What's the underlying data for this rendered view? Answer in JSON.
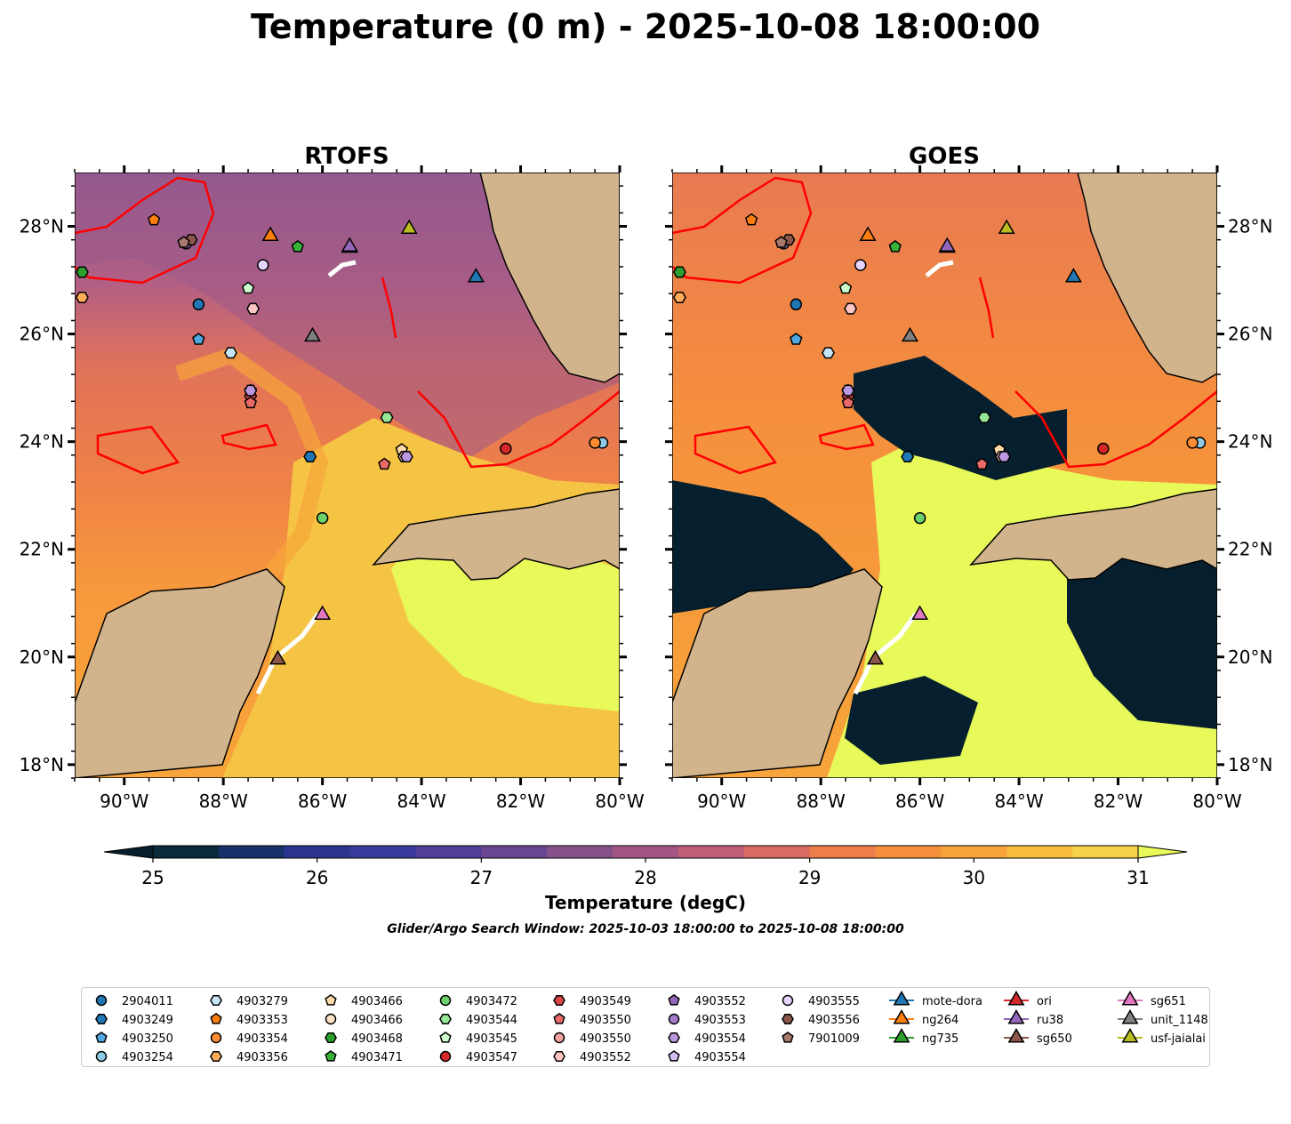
{
  "title": "Temperature (0 m) - 2025-10-08 18:00:00",
  "panels": [
    {
      "name": "RTOFS"
    },
    {
      "name": "GOES"
    }
  ],
  "axes": {
    "lon_range": [
      -91,
      -80
    ],
    "lat_range": [
      17.75,
      29
    ],
    "lon_ticks": [
      -90,
      -88,
      -86,
      -84,
      -82,
      -80
    ],
    "lon_labels": [
      "90°W",
      "88°W",
      "86°W",
      "84°W",
      "82°W",
      "80°W"
    ],
    "lat_ticks": [
      18,
      20,
      22,
      24,
      26,
      28
    ],
    "lat_labels": [
      "18°N",
      "20°N",
      "22°N",
      "24°N",
      "26°N",
      "28°N"
    ]
  },
  "colorbar": {
    "label": "Temperature (degC)",
    "min": 25,
    "max": 31,
    "step": 0.5,
    "ticks": [
      25,
      26,
      27,
      28,
      29,
      30,
      31
    ],
    "tick_labels": [
      "25",
      "26",
      "27",
      "28",
      "29",
      "30",
      "31"
    ],
    "colors": [
      "#0b2a3b",
      "#15326b",
      "#2b3591",
      "#3a3a9c",
      "#533f97",
      "#6b4791",
      "#86518a",
      "#a35685",
      "#c05e77",
      "#d86a62",
      "#ee7d4c",
      "#f58f3c",
      "#f7a53a",
      "#f7bb3e",
      "#f6d14a"
    ],
    "under_color": "#061f2e",
    "over_color": "#e8f95a"
  },
  "subtitle": "Glider/Argo Search Window: 2025-10-03 18:00:00 to 2025-10-08 18:00:00",
  "colors": {
    "land": "#d2b48c",
    "eddy_contour": "#ff0000",
    "glider_track": "#ffffff"
  },
  "legend": {
    "items": [
      {
        "label": "2904011",
        "marker": "circle",
        "color": "#1f77b4"
      },
      {
        "label": "4903249",
        "marker": "hexagon",
        "color": "#1f77b4"
      },
      {
        "label": "4903250",
        "marker": "pentagon",
        "color": "#4ea7e0"
      },
      {
        "label": "4903254",
        "marker": "circle",
        "color": "#8ecae6"
      },
      {
        "label": "4903279",
        "marker": "hexagon",
        "color": "#c6e6f7"
      },
      {
        "label": "4903353",
        "marker": "pentagon",
        "color": "#ff7f0e"
      },
      {
        "label": "4903354",
        "marker": "circle",
        "color": "#ff8c33"
      },
      {
        "label": "4903356",
        "marker": "hexagon",
        "color": "#ffad5a"
      },
      {
        "label": "4903466",
        "marker": "pentagon",
        "color": "#ffd9a8"
      },
      {
        "label": "4903466",
        "marker": "circle",
        "color": "#ffe3c4"
      },
      {
        "label": "4903468",
        "marker": "hexagon",
        "color": "#2ca02c"
      },
      {
        "label": "4903471",
        "marker": "pentagon",
        "color": "#38b338"
      },
      {
        "label": "4903472",
        "marker": "circle",
        "color": "#6cd06c"
      },
      {
        "label": "4903544",
        "marker": "hexagon",
        "color": "#98e698"
      },
      {
        "label": "4903545",
        "marker": "pentagon",
        "color": "#ccffcc"
      },
      {
        "label": "4903547",
        "marker": "circle",
        "color": "#d62728"
      },
      {
        "label": "4903549",
        "marker": "hexagon",
        "color": "#d94545"
      },
      {
        "label": "4903550",
        "marker": "pentagon",
        "color": "#ea6a6a"
      },
      {
        "label": "4903550",
        "marker": "circle",
        "color": "#f2a0a0"
      },
      {
        "label": "4903552",
        "marker": "hexagon",
        "color": "#ffc6c6"
      },
      {
        "label": "4903552",
        "marker": "pentagon",
        "color": "#9467bd"
      },
      {
        "label": "4903553",
        "marker": "circle",
        "color": "#a37ccc"
      },
      {
        "label": "4903554",
        "marker": "hexagon",
        "color": "#bb97e0"
      },
      {
        "label": "4903554",
        "marker": "pentagon",
        "color": "#d5bff0"
      },
      {
        "label": "4903555",
        "marker": "circle",
        "color": "#e8d5ff"
      },
      {
        "label": "4903556",
        "marker": "hexagon",
        "color": "#8c564b"
      },
      {
        "label": "7901009",
        "marker": "pentagon",
        "color": "#a8786b"
      },
      {
        "label": "mote-dora",
        "marker": "triangle",
        "color": "#1f77b4"
      },
      {
        "label": "ng264",
        "marker": "triangle",
        "color": "#ff7f0e"
      },
      {
        "label": "ng735",
        "marker": "triangle",
        "color": "#2ca02c"
      },
      {
        "label": "ori",
        "marker": "triangle",
        "color": "#d62728"
      },
      {
        "label": "ru38",
        "marker": "triangle",
        "color": "#9467bd"
      },
      {
        "label": "sg650",
        "marker": "triangle",
        "color": "#8c564b"
      },
      {
        "label": "sg651",
        "marker": "triangle",
        "color": "#e377c2"
      },
      {
        "label": "unit_1148",
        "marker": "triangle",
        "color": "#7f7f7f"
      },
      {
        "label": "usf-jaialai",
        "marker": "triangle",
        "color": "#bcbd22"
      }
    ]
  },
  "markers": [
    {
      "label": "2904011",
      "lon": -88.5,
      "lat": 26.55
    },
    {
      "label": "4903249",
      "lon": -86.25,
      "lat": 23.72
    },
    {
      "label": "4903250",
      "lon": -88.5,
      "lat": 25.9
    },
    {
      "label": "4903254",
      "lon": -80.35,
      "lat": 23.98
    },
    {
      "label": "4903279",
      "lon": -87.85,
      "lat": 25.65
    },
    {
      "label": "4903353",
      "lon": -89.4,
      "lat": 28.12
    },
    {
      "label": "4903354",
      "lon": -80.5,
      "lat": 23.98
    },
    {
      "label": "4903356",
      "lon": -90.85,
      "lat": 26.68
    },
    {
      "label": "4903466",
      "lon": -87.45,
      "lat": 24.95
    },
    {
      "label": "4903466",
      "lon": -84.4,
      "lat": 23.85
    },
    {
      "label": "4903468",
      "lon": -90.85,
      "lat": 27.15
    },
    {
      "label": "4903471",
      "lon": -86.5,
      "lat": 27.62
    },
    {
      "label": "4903472",
      "lon": -86.0,
      "lat": 22.58
    },
    {
      "label": "4903544",
      "lon": -84.7,
      "lat": 24.45
    },
    {
      "label": "4903545",
      "lon": -87.5,
      "lat": 26.85
    },
    {
      "label": "4903547",
      "lon": -82.3,
      "lat": 23.87
    },
    {
      "label": "4903549",
      "lon": -87.45,
      "lat": 24.85
    },
    {
      "label": "4903550",
      "lon": -84.75,
      "lat": 23.58
    },
    {
      "label": "4903550",
      "lon": -87.45,
      "lat": 24.72
    },
    {
      "label": "4903552",
      "lon": -84.35,
      "lat": 23.72
    },
    {
      "label": "4903552",
      "lon": -87.4,
      "lat": 26.47
    },
    {
      "label": "4903553",
      "lon": -88.75,
      "lat": 27.68
    },
    {
      "label": "4903554",
      "lon": -84.3,
      "lat": 23.72
    },
    {
      "label": "4903554",
      "lon": -87.45,
      "lat": 24.95
    },
    {
      "label": "4903555",
      "lon": -87.2,
      "lat": 27.28
    },
    {
      "label": "4903556",
      "lon": -88.65,
      "lat": 27.75
    },
    {
      "label": "7901009",
      "lon": -88.8,
      "lat": 27.7
    },
    {
      "label": "mote-dora",
      "lon": -82.9,
      "lat": 27.05
    },
    {
      "label": "ng264",
      "lon": -87.05,
      "lat": 27.82
    },
    {
      "label": "ori",
      "lon": -85.45,
      "lat": 27.6
    },
    {
      "label": "ru38",
      "lon": -85.45,
      "lat": 27.62
    },
    {
      "label": "sg650",
      "lon": -86.9,
      "lat": 19.95
    },
    {
      "label": "sg651",
      "lon": -86.0,
      "lat": 20.78
    },
    {
      "label": "unit_1148",
      "lon": -86.2,
      "lat": 25.95
    },
    {
      "label": "usf-jaialai",
      "lon": -84.25,
      "lat": 27.95
    }
  ]
}
